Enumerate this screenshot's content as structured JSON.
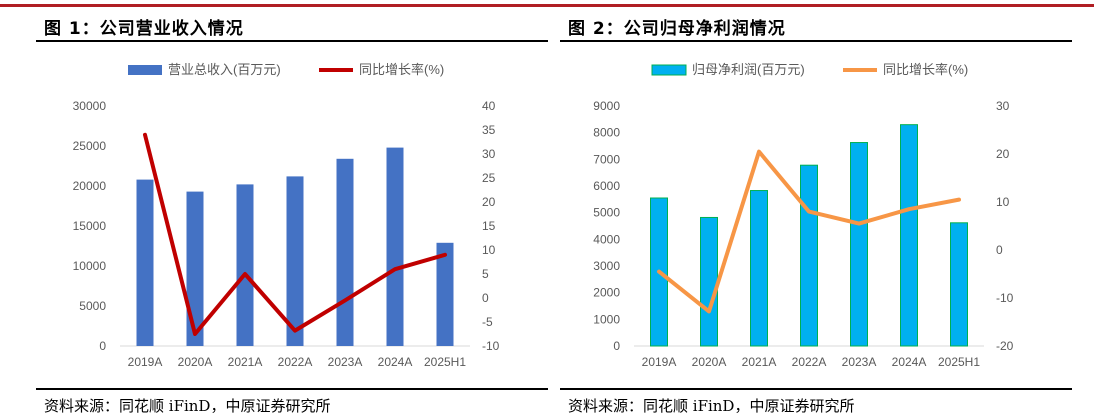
{
  "charts": [
    {
      "title": "图 1：公司营业收入情况",
      "source": "资料来源：同花顺 iFinD，中原证券研究所",
      "colors": {
        "bar": "#4472c4",
        "line": "#c00000"
      },
      "chart_data": {
        "type": "bar+line",
        "categories": [
          "2019A",
          "2020A",
          "2021A",
          "2022A",
          "2023A",
          "2024A",
          "2025H1"
        ],
        "series": [
          {
            "name": "营业总收入(百万元)",
            "type": "bar",
            "axis": "left",
            "values": [
              20800,
              19300,
              20200,
              21200,
              23400,
              24800,
              12900
            ]
          },
          {
            "name": "同比增长率(%)",
            "type": "line",
            "axis": "right",
            "values": [
              34,
              -7.5,
              5,
              -6.8,
              -0.5,
              6,
              9
            ]
          }
        ],
        "left_axis": {
          "min": 0,
          "max": 30000,
          "ticks": [
            "0",
            "5000",
            "10000",
            "15000",
            "20000",
            "25000",
            "30000"
          ]
        },
        "right_axis": {
          "min": -10,
          "max": 40,
          "ticks": [
            "-10",
            "-5",
            "0",
            "5",
            "10",
            "15",
            "20",
            "25",
            "30",
            "35",
            "40"
          ]
        },
        "legend_position": "top",
        "grid": false
      }
    },
    {
      "title": "图 2：公司归母净利润情况",
      "source": "资料来源：同花顺 iFinD，中原证券研究所",
      "colors": {
        "bar": "#00b0f0",
        "barStroke": "#00b050",
        "line": "#f79646"
      },
      "chart_data": {
        "type": "bar+line",
        "categories": [
          "2019A",
          "2020A",
          "2021A",
          "2022A",
          "2023A",
          "2024A",
          "2025H1"
        ],
        "series": [
          {
            "name": "归母净利润(百万元)",
            "type": "bar",
            "axis": "left",
            "values": [
              5550,
              4820,
              5830,
              6780,
              7630,
              8300,
              4620
            ]
          },
          {
            "name": "同比增长率(%)",
            "type": "line",
            "axis": "right",
            "values": [
              -4.5,
              -12.8,
              20.5,
              8,
              5.5,
              8.5,
              10.5
            ]
          }
        ],
        "left_axis": {
          "min": 0,
          "max": 9000,
          "ticks": [
            "0",
            "1000",
            "2000",
            "3000",
            "4000",
            "5000",
            "6000",
            "7000",
            "8000",
            "9000"
          ]
        },
        "right_axis": {
          "min": -20,
          "max": 30,
          "ticks": [
            "-20",
            "-10",
            "0",
            "10",
            "20",
            "30"
          ]
        },
        "legend_position": "top",
        "grid": false
      }
    }
  ]
}
